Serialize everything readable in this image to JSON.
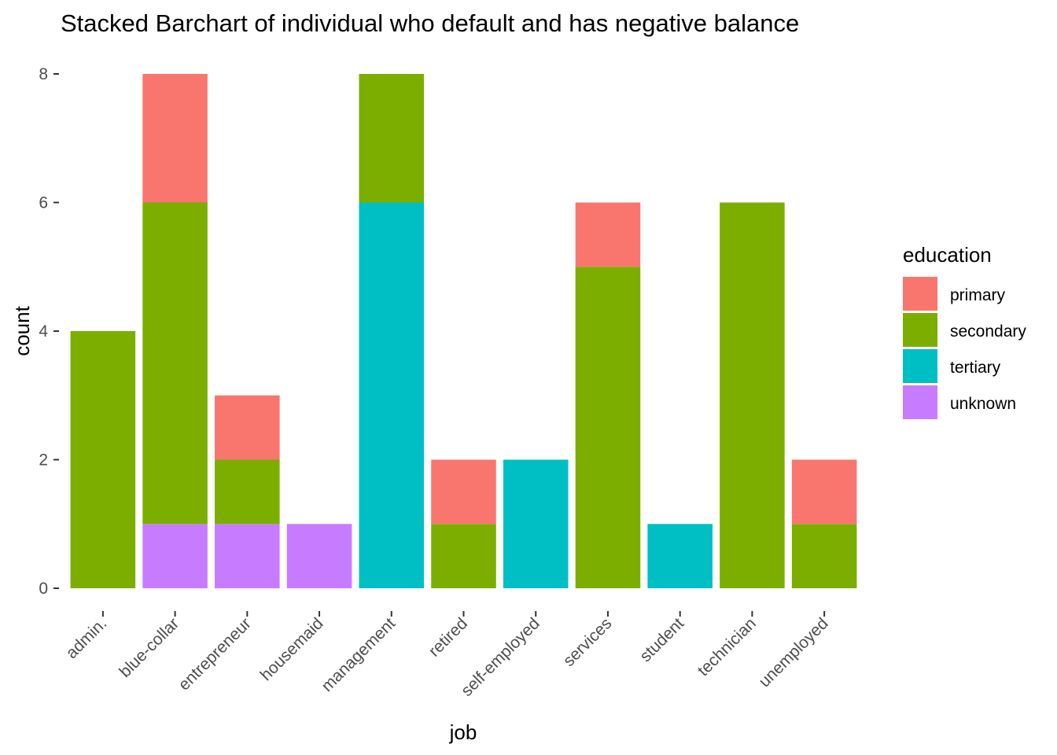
{
  "chart_data": {
    "type": "bar",
    "stacked": true,
    "title": "Stacked Barchart of individual who default and has negative balance",
    "xlabel": "job",
    "ylabel": "count",
    "ylim": [
      0,
      8
    ],
    "yticks": [
      0,
      2,
      4,
      6,
      8
    ],
    "grid": false,
    "legend_position": "right",
    "legend_title": "education",
    "categories": [
      "admin.",
      "blue-collar",
      "entrepreneur",
      "housemaid",
      "management",
      "retired",
      "self-employed",
      "services",
      "student",
      "technician",
      "unemployed"
    ],
    "series": [
      {
        "name": "primary",
        "color": "#F8766D",
        "values": [
          0,
          2,
          1,
          0,
          0,
          1,
          0,
          1,
          0,
          0,
          1
        ]
      },
      {
        "name": "secondary",
        "color": "#7CAE00",
        "values": [
          4,
          5,
          1,
          0,
          2,
          1,
          0,
          5,
          0,
          6,
          1
        ]
      },
      {
        "name": "tertiary",
        "color": "#00BFC4",
        "values": [
          0,
          0,
          0,
          0,
          6,
          0,
          2,
          0,
          1,
          0,
          0
        ]
      },
      {
        "name": "unknown",
        "color": "#C77CFF",
        "values": [
          0,
          1,
          1,
          1,
          0,
          0,
          0,
          0,
          0,
          0,
          0
        ]
      }
    ]
  }
}
